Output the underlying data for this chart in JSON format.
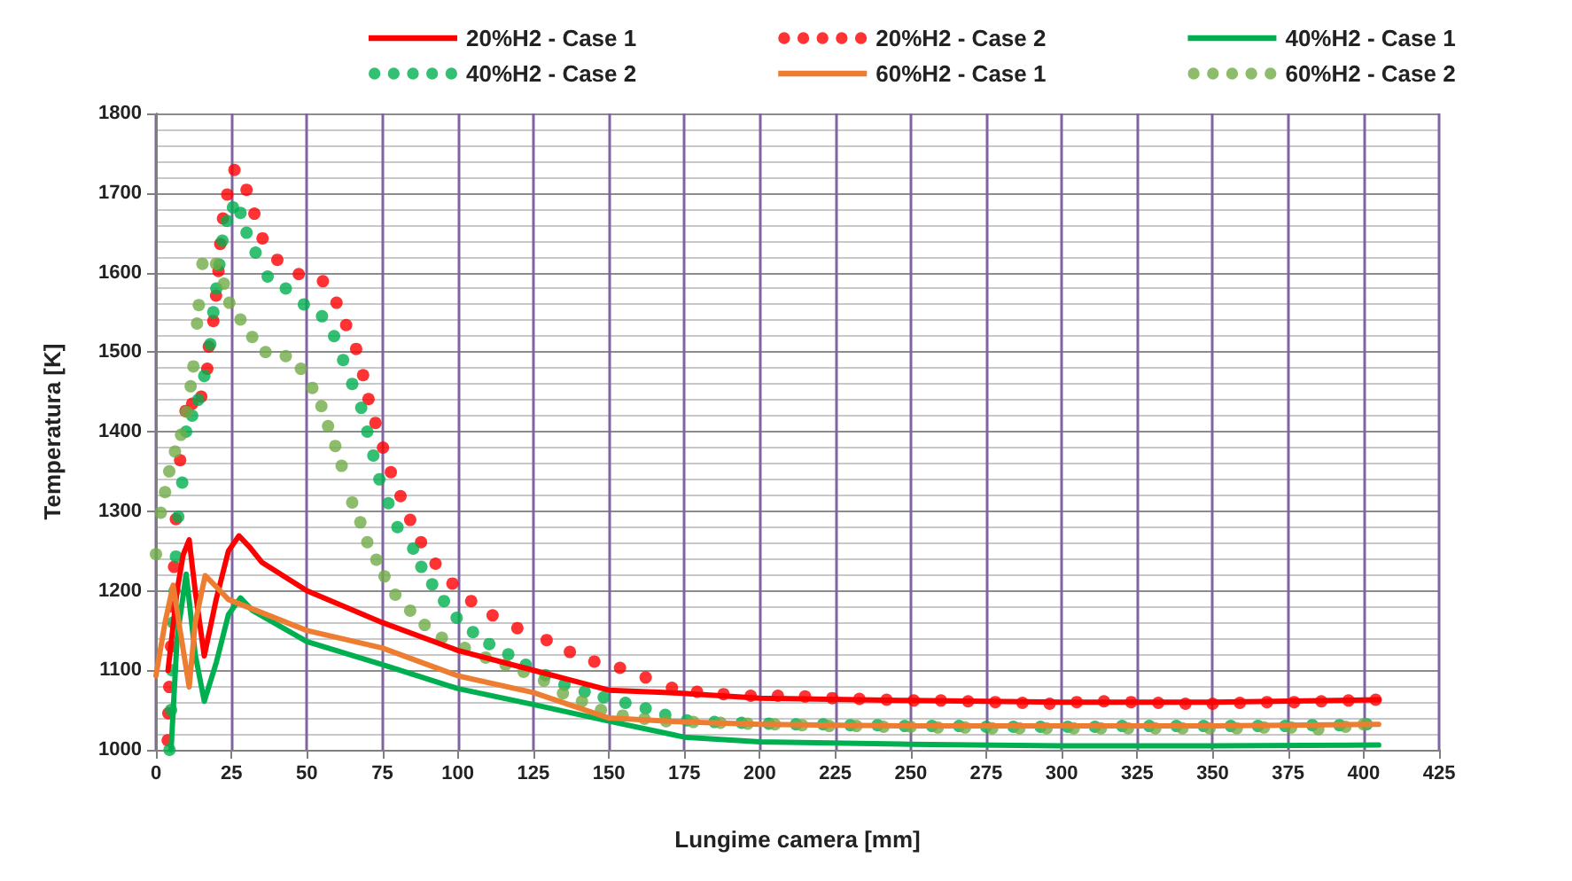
{
  "chart_data": {
    "type": "line",
    "xlabel": "Lungime camera [mm]",
    "ylabel": "Temperatura [K]",
    "xlim": [
      0,
      425
    ],
    "xticks": [
      0,
      25,
      50,
      75,
      100,
      125,
      150,
      175,
      200,
      225,
      250,
      275,
      300,
      325,
      350,
      375,
      400,
      425
    ],
    "ylim": [
      1000,
      1800
    ],
    "yticks": [
      1000,
      1100,
      1200,
      1300,
      1400,
      1500,
      1600,
      1700,
      1800
    ],
    "grid": true,
    "legend": "top",
    "series": [
      {
        "name": "20%H2 - Case 1",
        "marker": "none",
        "color": "#ff0000",
        "x": [
          4,
          7,
          9,
          11,
          13,
          16,
          20,
          24,
          27.5,
          31,
          35,
          50,
          75,
          100,
          125,
          150,
          170,
          200,
          250,
          300,
          350,
          405
        ],
        "values": [
          1100,
          1200,
          1245,
          1264,
          1200,
          1118,
          1190,
          1250,
          1269,
          1255,
          1236,
          1200,
          1160,
          1125,
          1100,
          1075,
          1072,
          1065,
          1062,
          1060,
          1060,
          1063
        ]
      },
      {
        "name": "20%H2 - Case 2",
        "type": "scatter",
        "marker": "circle",
        "color": "#ff0000",
        "x": [
          3.9,
          4.1,
          4.4,
          5,
          5.5,
          6,
          6.6,
          8,
          9.8,
          12,
          15,
          17,
          17.5,
          19,
          19.9,
          20.7,
          21.3,
          22.2,
          23.6,
          26,
          30,
          32.6,
          35.3,
          40.2,
          47.3,
          55.3,
          59.8,
          63,
          66.3,
          68.6,
          70.4,
          72.7,
          75.2,
          77.8,
          81,
          84.2,
          87.8,
          92.6,
          98.2,
          104.4,
          111.5,
          119.7,
          129.4,
          137.1,
          145.2,
          153.7,
          162.2,
          170.9,
          179.2,
          188,
          197,
          206,
          215,
          224,
          233,
          242,
          251,
          260,
          269,
          278,
          287,
          296,
          305,
          314,
          323,
          332,
          341,
          350,
          359,
          368,
          377,
          386,
          395,
          404
        ],
        "values": [
          1012,
          1046,
          1079,
          1130,
          1180,
          1230,
          1290,
          1364,
          1426,
          1435,
          1444,
          1479,
          1507,
          1539,
          1571,
          1602,
          1636,
          1668,
          1698,
          1729,
          1704,
          1674,
          1643,
          1616,
          1598,
          1589,
          1562,
          1534,
          1504,
          1471,
          1441,
          1411,
          1380,
          1349,
          1319,
          1289,
          1261,
          1234,
          1209,
          1187,
          1169,
          1153,
          1138,
          1123,
          1111,
          1103,
          1091,
          1078,
          1073,
          1070,
          1068,
          1068,
          1067,
          1065,
          1064,
          1063,
          1062,
          1062,
          1061,
          1060,
          1059,
          1058,
          1060,
          1061,
          1060,
          1059,
          1058,
          1058,
          1059,
          1060,
          1060,
          1061,
          1062,
          1063
        ]
      },
      {
        "name": "40%H2 - Case 1",
        "marker": "none",
        "color": "#00b050",
        "x": [
          5,
          7,
          10,
          13,
          16,
          20,
          24,
          28,
          32,
          50,
          75,
          100,
          125,
          150,
          175,
          200,
          250,
          300,
          350,
          405
        ],
        "values": [
          1000,
          1140,
          1221,
          1120,
          1061,
          1110,
          1170,
          1191,
          1175,
          1136,
          1107,
          1077,
          1057,
          1036,
          1016,
          1010,
          1007,
          1005,
          1005,
          1006
        ]
      },
      {
        "name": "40%H2 - Case 2",
        "type": "scatter",
        "marker": "circle",
        "color": "#00b050",
        "x": [
          4.5,
          5,
          5.3,
          5.7,
          6.2,
          6.6,
          7.4,
          8.7,
          10,
          12,
          14,
          16,
          18,
          19,
          20,
          21,
          22,
          23.5,
          25.5,
          28,
          30,
          33,
          37,
          43,
          49,
          55,
          59,
          62,
          65,
          68,
          70,
          72,
          74,
          77,
          80,
          85.2,
          87.9,
          91.5,
          95.4,
          99.6,
          105,
          110.4,
          116.7,
          122.5,
          129,
          135.3,
          142,
          148.3,
          155.5,
          162.2,
          168.7,
          175.9,
          185,
          194,
          203,
          212,
          221,
          230,
          239,
          248,
          257,
          266,
          275,
          284,
          293,
          302,
          311,
          320,
          329,
          338,
          347,
          356,
          365,
          374,
          383,
          392,
          401
        ],
        "values": [
          1000,
          1050,
          1100,
          1160,
          1200,
          1243,
          1293,
          1336,
          1400,
          1420,
          1440,
          1470,
          1510,
          1550,
          1580,
          1610,
          1640,
          1665,
          1682,
          1675,
          1650,
          1625,
          1595,
          1580,
          1560,
          1545,
          1520,
          1490,
          1460,
          1430,
          1400,
          1370,
          1340,
          1310,
          1280,
          1253,
          1230,
          1208,
          1187,
          1166,
          1148,
          1133,
          1120,
          1107,
          1094,
          1082,
          1073,
          1066,
          1059,
          1052,
          1044,
          1037,
          1035,
          1034,
          1033,
          1032,
          1032,
          1031,
          1031,
          1030,
          1030,
          1030,
          1029,
          1029,
          1029,
          1029,
          1029,
          1030,
          1030,
          1030,
          1030,
          1030,
          1030,
          1030,
          1031,
          1031,
          1032
        ]
      },
      {
        "name": "60%H2 - Case 1",
        "marker": "none",
        "color": "#ed7d31",
        "x": [
          0,
          3,
          5.7,
          8,
          11,
          13,
          16.3,
          20,
          24,
          50,
          75,
          100,
          125,
          150,
          175,
          200,
          250,
          300,
          350,
          405
        ],
        "values": [
          1093,
          1160,
          1207,
          1150,
          1079,
          1160,
          1219,
          1205,
          1189,
          1150,
          1128,
          1093,
          1072,
          1040,
          1035,
          1032,
          1030,
          1030,
          1030,
          1032
        ]
      },
      {
        "name": "60%H2 - Case 2",
        "type": "scatter",
        "marker": "circle",
        "color": "#70ad47",
        "x": [
          0,
          1.6,
          3,
          4.4,
          6.3,
          8.3,
          10.1,
          11.5,
          12.4,
          13.6,
          14.2,
          15.4,
          19.9,
          22.5,
          24.3,
          28,
          31.9,
          36.3,
          43,
          48,
          51.8,
          54.8,
          57,
          59.4,
          61.5,
          65,
          67.7,
          70,
          73,
          75.7,
          79.3,
          84.2,
          89,
          94.7,
          102.3,
          109.2,
          115.8,
          121.8,
          128.5,
          134.8,
          141.1,
          147.4,
          154.6,
          161.8,
          169,
          178,
          187,
          196,
          205,
          214,
          223,
          232,
          241,
          250,
          259,
          268,
          277,
          286,
          295,
          304,
          313,
          322,
          331,
          340,
          349,
          358,
          367,
          376,
          385,
          394,
          400
        ],
        "values": [
          1246,
          1298,
          1324,
          1350,
          1375,
          1396,
          1425,
          1457,
          1482,
          1536,
          1559,
          1611,
          1611,
          1586,
          1562,
          1541,
          1519,
          1500,
          1495,
          1479,
          1455,
          1432,
          1407,
          1382,
          1357,
          1311,
          1286,
          1261,
          1239,
          1218,
          1195,
          1175,
          1157,
          1141,
          1128,
          1116,
          1107,
          1098,
          1087,
          1071,
          1061,
          1050,
          1043,
          1039,
          1036,
          1035,
          1034,
          1033,
          1032,
          1031,
          1030,
          1030,
          1029,
          1029,
          1028,
          1028,
          1027,
          1027,
          1027,
          1027,
          1027,
          1027,
          1027,
          1027,
          1027,
          1027,
          1028,
          1028,
          1026,
          1029,
          1032
        ]
      }
    ]
  }
}
